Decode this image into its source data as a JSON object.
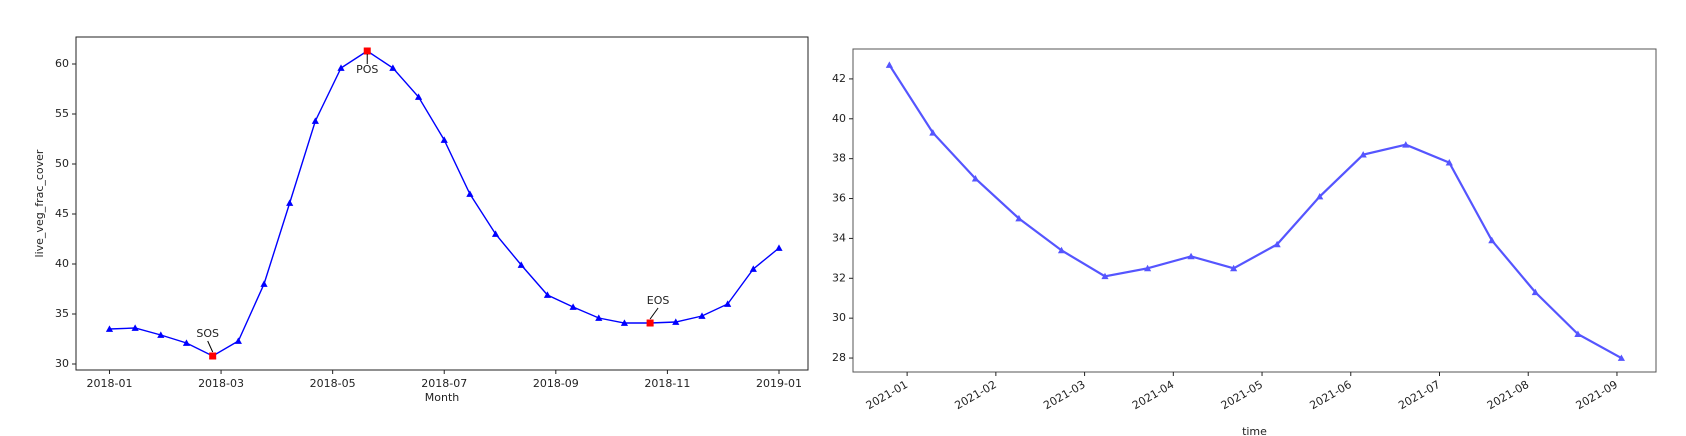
{
  "chart_data": [
    {
      "type": "line",
      "xlabel": "Month",
      "ylabel": "live_veg_frac_cover",
      "x": [
        0,
        0.46,
        0.92,
        1.38,
        1.85,
        2.31,
        2.77,
        3.23,
        3.69,
        4.15,
        4.62,
        5.08,
        5.54,
        6,
        6.46,
        6.92,
        7.38,
        7.85,
        8.31,
        8.77,
        9.23,
        9.69,
        10.15,
        10.62,
        11.08,
        11.54,
        12
      ],
      "series": [
        {
          "color": "#0000ff",
          "values": [
            33.5,
            33.6,
            32.9,
            32.1,
            30.8,
            32.3,
            38.0,
            46.1,
            54.3,
            59.6,
            61.3,
            59.6,
            56.7,
            52.4,
            47.0,
            43.0,
            39.9,
            36.9,
            35.7,
            34.6,
            34.1,
            34.1,
            34.2,
            34.8,
            36.0,
            39.5,
            41.6
          ]
        }
      ],
      "marker": "triangle",
      "xlim": [
        -0.6,
        12.52
      ],
      "ylim": [
        29.4,
        62.7
      ],
      "xticks": [
        {
          "value": 0,
          "label": "2018-01"
        },
        {
          "value": 2,
          "label": "2018-03"
        },
        {
          "value": 4,
          "label": "2018-05"
        },
        {
          "value": 6,
          "label": "2018-07"
        },
        {
          "value": 8,
          "label": "2018-09"
        },
        {
          "value": 10,
          "label": "2018-11"
        },
        {
          "value": 12,
          "label": "2019-01"
        }
      ],
      "yticks": [
        30,
        35,
        40,
        45,
        50,
        55,
        60
      ],
      "annotations": [
        {
          "text": "SOS",
          "x": 1.85
        },
        {
          "text": "POS",
          "x": 4.62
        },
        {
          "text": "EOS",
          "x": 9.69
        }
      ],
      "annotation_color": "#ff0000"
    },
    {
      "type": "line",
      "xlabel": "time",
      "x": [
        -0.2,
        0.29,
        0.77,
        1.26,
        1.74,
        2.23,
        2.71,
        3.2,
        3.68,
        4.17,
        4.65,
        5.14,
        5.62,
        6.11,
        6.59,
        7.08,
        7.56,
        8.05
      ],
      "series": [
        {
          "color": "#5555ff",
          "values": [
            42.7,
            39.3,
            37.0,
            35.0,
            33.4,
            32.1,
            32.5,
            33.1,
            32.5,
            33.7,
            36.1,
            38.2,
            38.7,
            37.8,
            33.9,
            31.3,
            29.2,
            28.0
          ]
        }
      ],
      "marker": "triangle",
      "xlim": [
        -0.61,
        8.44
      ],
      "ylim": [
        27.3,
        43.5
      ],
      "xticks": [
        {
          "value": 0,
          "label": "2021-01"
        },
        {
          "value": 1,
          "label": "2021-02"
        },
        {
          "value": 2,
          "label": "2021-03"
        },
        {
          "value": 3,
          "label": "2021-04"
        },
        {
          "value": 4,
          "label": "2021-05"
        },
        {
          "value": 5,
          "label": "2021-06"
        },
        {
          "value": 6,
          "label": "2021-07"
        },
        {
          "value": 7,
          "label": "2021-08"
        },
        {
          "value": 8,
          "label": "2021-09"
        }
      ],
      "yticks": [
        28,
        30,
        32,
        34,
        36,
        38,
        40,
        42
      ],
      "rotate_xticks": true
    }
  ]
}
